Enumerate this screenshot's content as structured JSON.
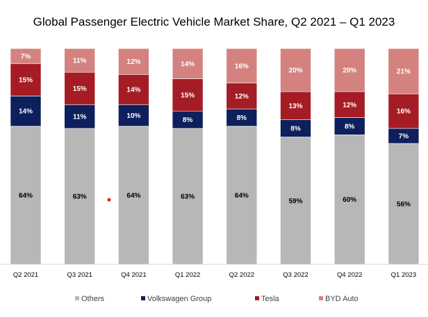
{
  "chart_data": {
    "type": "bar",
    "stacked": true,
    "percent": true,
    "title": "Global Passenger Electric Vehicle Market Share, Q2 2021 – Q1 2023",
    "xlabel": "",
    "ylabel": "",
    "ylim": [
      0,
      100
    ],
    "grid": false,
    "legend_position": "bottom",
    "categories": [
      "Q2 2021",
      "Q3 2021",
      "Q4 2021",
      "Q1 2022",
      "Q2 2022",
      "Q3 2022",
      "Q4 2022",
      "Q1 2023"
    ],
    "series": [
      {
        "name": "Others",
        "color": "#b7b7b7",
        "label_color": "#000000",
        "values": [
          64,
          63,
          64,
          63,
          64,
          59,
          60,
          56
        ],
        "labels": [
          "64%",
          "63%",
          "64%",
          "63%",
          "64%",
          "59%",
          "60%",
          "56%"
        ]
      },
      {
        "name": "Volkswagen Group",
        "color": "#0d1f5c",
        "label_color": "#ffffff",
        "values": [
          14,
          11,
          10,
          8,
          8,
          8,
          8,
          7
        ],
        "labels": [
          "14%",
          "11%",
          "10%",
          "8%",
          "8%",
          "8%",
          "8%",
          "7%"
        ]
      },
      {
        "name": "Tesla",
        "color": "#a51c24",
        "label_color": "#ffffff",
        "values": [
          15,
          15,
          14,
          15,
          12,
          13,
          12,
          16
        ],
        "labels": [
          "15%",
          "15%",
          "14%",
          "15%",
          "12%",
          "13%",
          "12%",
          "16%"
        ]
      },
      {
        "name": "BYD Auto",
        "color": "#d4827f",
        "label_color": "#ffffff",
        "values": [
          7,
          11,
          12,
          14,
          16,
          20,
          20,
          21
        ],
        "labels": [
          "7%",
          "11%",
          "12%",
          "14%",
          "16%",
          "20%",
          "20%",
          "21%"
        ]
      }
    ]
  }
}
